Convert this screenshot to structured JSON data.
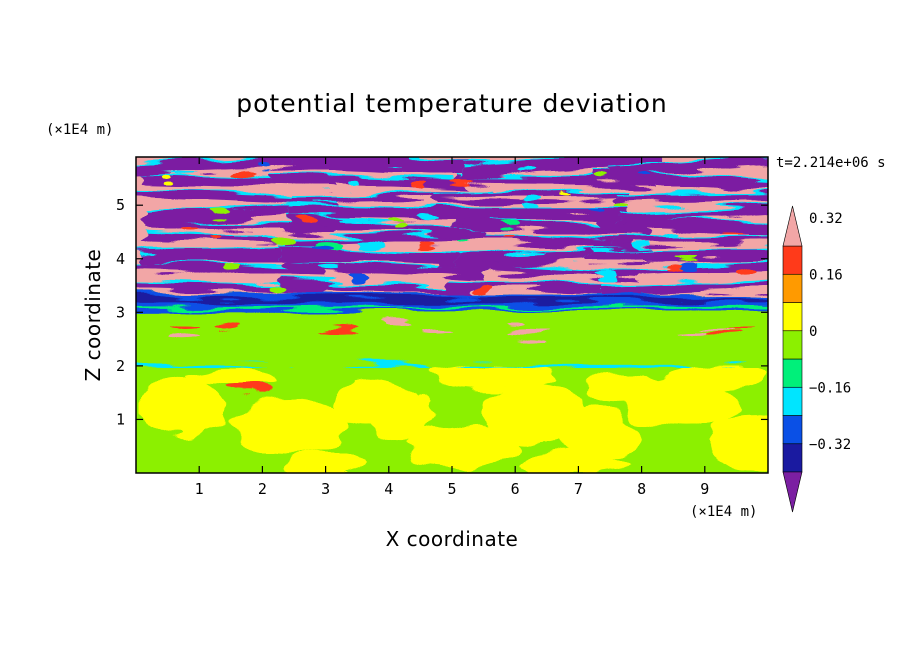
{
  "chart_data": {
    "type": "heatmap",
    "title": "potential temperature deviation",
    "xlabel": "X coordinate",
    "ylabel": "Z coordinate",
    "x_unit": "(×1E4 m)",
    "y_unit": "(×1E4 m)",
    "time_label": "t=2.214e+06 s",
    "xlim": [
      0,
      10
    ],
    "ylim": [
      0,
      5.9
    ],
    "x_ticks": [
      "1",
      "2",
      "3",
      "4",
      "5",
      "6",
      "7",
      "8",
      "9"
    ],
    "y_ticks": [
      "1",
      "2",
      "3",
      "4",
      "5"
    ],
    "colorbar": {
      "min": -0.48,
      "max": 0.48,
      "step": 0.08,
      "extend": "both",
      "colors": [
        "#7b1fa2",
        "#1a1aa0",
        "#0a50e6",
        "#00e5ff",
        "#00f07a",
        "#8cf000",
        "#ffff00",
        "#ff9a00",
        "#ff3a1a",
        "#f2a6a6"
      ],
      "labels": [
        "0.32",
        "0.16",
        "0",
        "-0.16",
        "-0.32"
      ],
      "label_values": [
        0.32,
        0.16,
        0,
        -0.16,
        -0.32
      ]
    },
    "layers": [
      {
        "z_range": [
          3.35,
          5.9
        ],
        "description": "alternating warm/cold bands",
        "dominant_values": [
          0.44,
          -0.44
        ]
      },
      {
        "z_range": [
          3.0,
          3.35
        ],
        "dominant_value": -0.28
      },
      {
        "z_range": [
          2.05,
          3.0
        ],
        "dominant_value": -0.04
      },
      {
        "z_range": [
          0,
          2.05
        ],
        "dominant_values": [
          -0.04,
          0.04
        ]
      }
    ]
  }
}
